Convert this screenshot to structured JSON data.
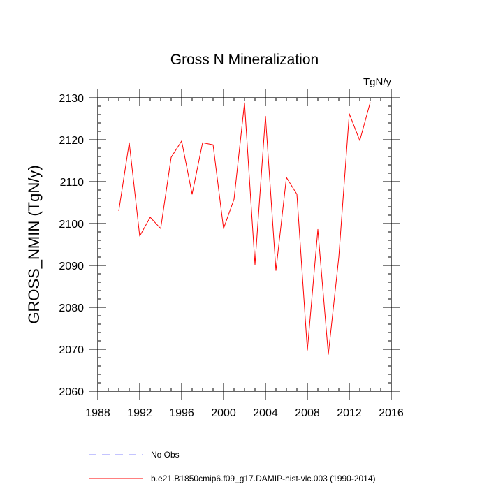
{
  "chart_data": {
    "type": "line",
    "title": "Gross N Mineralization",
    "units": "TgN/y",
    "xlabel": "",
    "ylabel": "GROSS_NMIN  (TgN/y)",
    "xlim": [
      1988,
      2016
    ],
    "ylim": [
      2060,
      2130
    ],
    "x_ticks": [
      1988,
      1992,
      1996,
      2000,
      2004,
      2008,
      2012,
      2016
    ],
    "y_ticks": [
      2060,
      2070,
      2080,
      2090,
      2100,
      2110,
      2120,
      2130
    ],
    "x_tick_labels": [
      "1988",
      "1992",
      "1996",
      "2000",
      "2004",
      "2008",
      "2012",
      "2016"
    ],
    "y_tick_labels": [
      "2060",
      "2070",
      "2080",
      "2090",
      "2100",
      "2110",
      "2120",
      "2130"
    ],
    "series": [
      {
        "name": "b.e21.B1850cmip6.f09_g17.DAMIP-hist-vlc.003 (1990-2014)",
        "color": "#ff0000",
        "x": [
          1990,
          1991,
          1992,
          1993,
          1994,
          1995,
          1996,
          1997,
          1998,
          1999,
          2000,
          2001,
          2002,
          2003,
          2004,
          2005,
          2006,
          2007,
          2008,
          2009,
          2010,
          2011,
          2012,
          2013,
          2014
        ],
        "y": [
          2103,
          2119.3,
          2097,
          2101.5,
          2098.8,
          2115.8,
          2119.7,
          2107,
          2119.3,
          2118.8,
          2098.8,
          2105.8,
          2128.8,
          2090.2,
          2125.6,
          2088.8,
          2111,
          2107,
          2069.8,
          2098.6,
          2068.8,
          2092,
          2126.2,
          2119.8,
          2128.9
        ]
      }
    ],
    "legend": {
      "placement": "bottom-left",
      "entries": [
        {
          "label": "No Obs",
          "color": "#8888ff",
          "style": "dashed"
        },
        {
          "label": "b.e21.B1850cmip6.f09_g17.DAMIP-hist-vlc.003 (1990-2014)",
          "color": "#ff0000",
          "style": "solid"
        }
      ]
    }
  }
}
